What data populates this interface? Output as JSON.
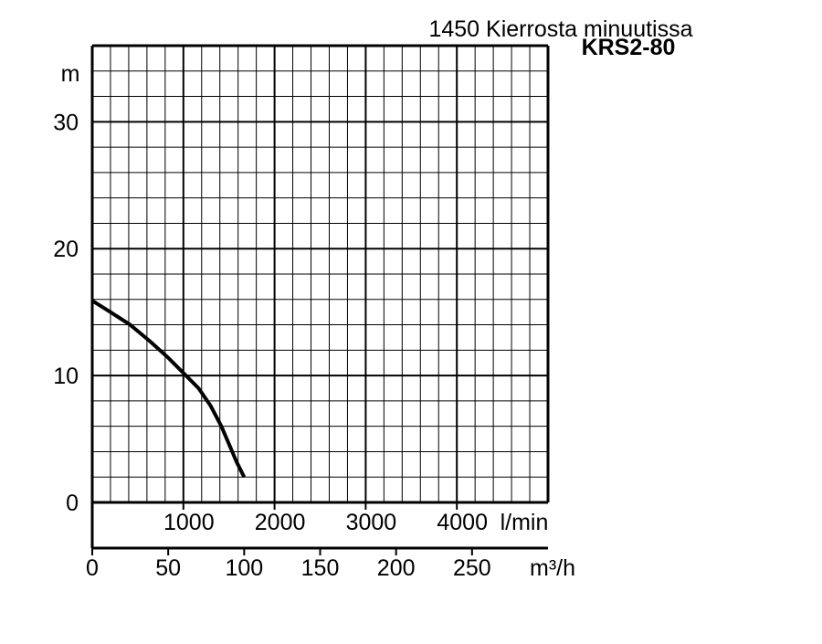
{
  "chart_data": {
    "type": "line",
    "title": "1450 Kierrosta minuutissa",
    "subtitle": "KRS2-80",
    "ylabel": "m",
    "ylim": [
      0,
      36
    ],
    "yticks": [
      0,
      10,
      20,
      30
    ],
    "x_lpm": {
      "unit_label": "l/min",
      "ticks": [
        {
          "value": 1000,
          "label": "1000"
        },
        {
          "value": 2000,
          "label": "2000"
        },
        {
          "value": 3000,
          "label": "3000"
        },
        {
          "value": 4000,
          "label": "4000"
        }
      ]
    },
    "x_m3h": {
      "unit_label": "m³/h",
      "xlim": [
        0,
        300
      ],
      "ticks": [
        {
          "value": 0,
          "label": "0"
        },
        {
          "value": 50,
          "label": "50"
        },
        {
          "value": 100,
          "label": "100"
        },
        {
          "value": 150,
          "label": "150"
        },
        {
          "value": 200,
          "label": "200"
        },
        {
          "value": 250,
          "label": "250"
        }
      ]
    },
    "grid": true,
    "series": [
      {
        "x": [
          0,
          12,
          25,
          38,
          50,
          60,
          70,
          78,
          85,
          90,
          95,
          100
        ],
        "y": [
          15.9,
          15.0,
          14.0,
          12.7,
          11.4,
          10.2,
          9.0,
          7.6,
          6.0,
          4.6,
          3.2,
          2.0
        ]
      }
    ]
  }
}
